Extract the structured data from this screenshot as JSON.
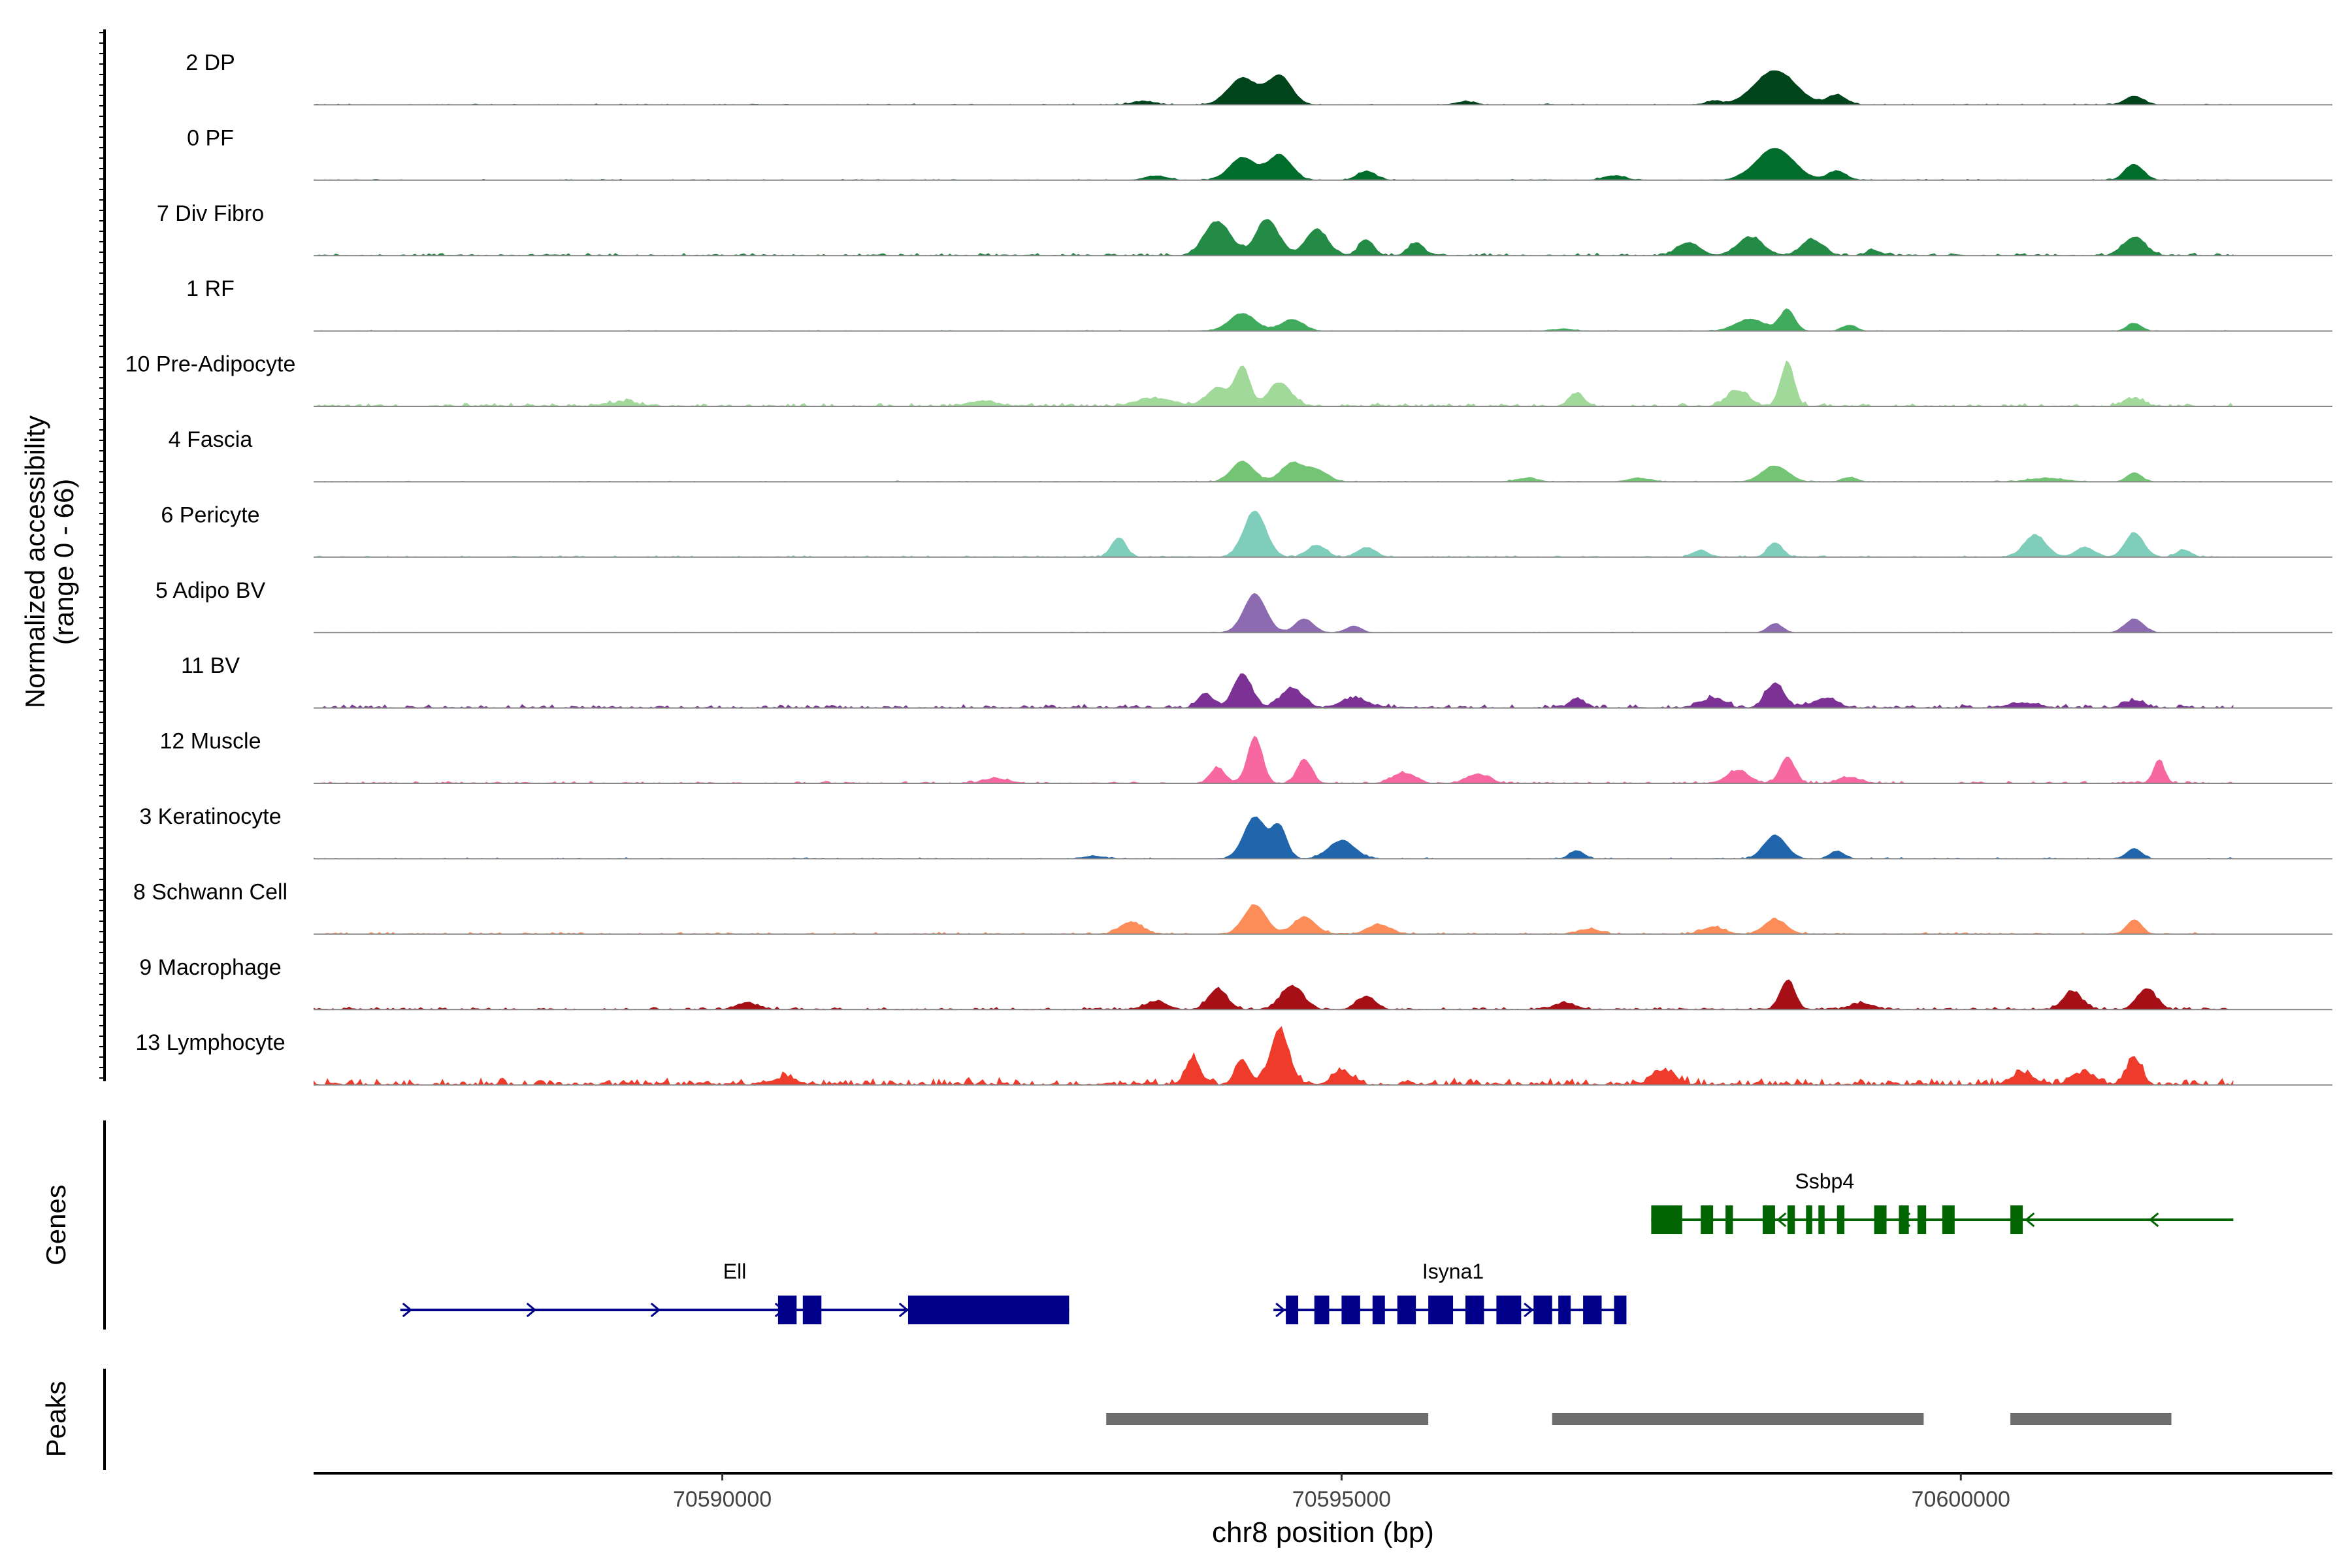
{
  "chart_data": {
    "type": "area",
    "ylabel_line1": "Normalized accessibility",
    "ylabel_line2": "(range 0 - 66)",
    "xlabel": "chr8 position (bp)",
    "xlim": [
      70586700,
      70603000
    ],
    "ylim": [
      0,
      66
    ],
    "x_ticks": [
      {
        "value": 70590000,
        "label": "70590000"
      },
      {
        "value": 70595000,
        "label": "70595000"
      },
      {
        "value": 70600000,
        "label": "70600000"
      }
    ],
    "tracks": [
      {
        "name": "2 DP",
        "color": "#00441b",
        "scale": 0.75,
        "noise": 0.03,
        "peaks": [
          [
            70594200,
            0.38,
            0.55
          ],
          [
            70594500,
            0.32,
            0.6
          ],
          [
            70598500,
            0.55,
            0.7
          ],
          [
            70599000,
            0.25,
            0.2
          ],
          [
            70598000,
            0.2,
            0.08
          ],
          [
            70601400,
            0.25,
            0.18
          ],
          [
            70596000,
            0.25,
            0.07
          ],
          [
            70593400,
            0.3,
            0.07
          ]
        ]
      },
      {
        "name": "0 PF",
        "color": "#006d2c",
        "scale": 0.7,
        "noise": 0.03,
        "peaks": [
          [
            70594200,
            0.35,
            0.5
          ],
          [
            70594500,
            0.32,
            0.55
          ],
          [
            70595200,
            0.25,
            0.2
          ],
          [
            70598500,
            0.5,
            0.7
          ],
          [
            70599000,
            0.25,
            0.2
          ],
          [
            70601400,
            0.25,
            0.35
          ],
          [
            70597200,
            0.3,
            0.1
          ],
          [
            70593500,
            0.3,
            0.1
          ]
        ]
      },
      {
        "name": "7 Div Fibro",
        "color": "#238b45",
        "scale": 0.8,
        "noise": 0.06,
        "peaks": [
          [
            70594000,
            0.35,
            0.65
          ],
          [
            70594400,
            0.3,
            0.7
          ],
          [
            70594800,
            0.3,
            0.5
          ],
          [
            70595200,
            0.2,
            0.3
          ],
          [
            70595600,
            0.2,
            0.25
          ],
          [
            70597800,
            0.3,
            0.25
          ],
          [
            70598300,
            0.35,
            0.35
          ],
          [
            70598800,
            0.3,
            0.3
          ],
          [
            70601400,
            0.3,
            0.35
          ],
          [
            70599300,
            0.2,
            0.1
          ]
        ]
      },
      {
        "name": "1 RF",
        "color": "#41ab5d",
        "scale": 0.6,
        "noise": 0.03,
        "peaks": [
          [
            70594200,
            0.35,
            0.45
          ],
          [
            70594600,
            0.3,
            0.3
          ],
          [
            70598300,
            0.4,
            0.3
          ],
          [
            70598600,
            0.2,
            0.55
          ],
          [
            70599100,
            0.2,
            0.15
          ],
          [
            70601400,
            0.2,
            0.2
          ],
          [
            70596800,
            0.3,
            0.05
          ]
        ]
      },
      {
        "name": "10 Pre-Adipocyte",
        "color": "#a1d99b",
        "scale": 0.8,
        "noise": 0.08,
        "peaks": [
          [
            70594200,
            0.2,
            0.75
          ],
          [
            70594500,
            0.3,
            0.45
          ],
          [
            70594000,
            0.3,
            0.35
          ],
          [
            70598600,
            0.18,
            0.85
          ],
          [
            70598200,
            0.3,
            0.3
          ],
          [
            70596900,
            0.2,
            0.25
          ],
          [
            70592100,
            0.4,
            0.1
          ],
          [
            70589200,
            0.4,
            0.08
          ],
          [
            70601400,
            0.25,
            0.15
          ],
          [
            70593500,
            0.5,
            0.15
          ]
        ]
      },
      {
        "name": "4 Fascia",
        "color": "#74c476",
        "scale": 0.7,
        "noise": 0.03,
        "peaks": [
          [
            70594200,
            0.3,
            0.45
          ],
          [
            70594600,
            0.3,
            0.4
          ],
          [
            70594800,
            0.3,
            0.25
          ],
          [
            70598500,
            0.35,
            0.35
          ],
          [
            70599100,
            0.2,
            0.1
          ],
          [
            70601400,
            0.2,
            0.2
          ],
          [
            70596500,
            0.3,
            0.08
          ],
          [
            70597400,
            0.3,
            0.08
          ],
          [
            70600700,
            0.5,
            0.08
          ]
        ]
      },
      {
        "name": "6 Pericyte",
        "color": "#7fcdbb",
        "scale": 0.75,
        "noise": 0.04,
        "peaks": [
          [
            70594300,
            0.3,
            0.95
          ],
          [
            70593200,
            0.2,
            0.4
          ],
          [
            70594800,
            0.25,
            0.25
          ],
          [
            70595200,
            0.25,
            0.2
          ],
          [
            70598500,
            0.2,
            0.3
          ],
          [
            70600600,
            0.3,
            0.45
          ],
          [
            70601000,
            0.25,
            0.2
          ],
          [
            70601400,
            0.25,
            0.5
          ],
          [
            70601800,
            0.2,
            0.15
          ],
          [
            70597900,
            0.2,
            0.15
          ]
        ]
      },
      {
        "name": "5 Adipo BV",
        "color": "#8c6bb1",
        "scale": 0.7,
        "noise": 0.02,
        "peaks": [
          [
            70594300,
            0.3,
            0.85
          ],
          [
            70594700,
            0.25,
            0.3
          ],
          [
            70595100,
            0.2,
            0.15
          ],
          [
            70598500,
            0.2,
            0.2
          ],
          [
            70601400,
            0.25,
            0.3
          ]
        ]
      },
      {
        "name": "11 BV",
        "color": "#7b3294",
        "scale": 0.75,
        "noise": 0.09,
        "peaks": [
          [
            70594200,
            0.25,
            0.7
          ],
          [
            70594600,
            0.3,
            0.4
          ],
          [
            70593900,
            0.2,
            0.3
          ],
          [
            70595100,
            0.35,
            0.2
          ],
          [
            70598500,
            0.25,
            0.5
          ],
          [
            70598000,
            0.3,
            0.2
          ],
          [
            70598900,
            0.3,
            0.2
          ],
          [
            70596900,
            0.2,
            0.2
          ],
          [
            70601400,
            0.25,
            0.15
          ],
          [
            70600500,
            0.4,
            0.1
          ]
        ]
      },
      {
        "name": "12 Muscle",
        "color": "#f768a1",
        "scale": 0.8,
        "noise": 0.05,
        "peaks": [
          [
            70594300,
            0.2,
            0.9
          ],
          [
            70594700,
            0.2,
            0.45
          ],
          [
            70594000,
            0.2,
            0.3
          ],
          [
            70595500,
            0.3,
            0.2
          ],
          [
            70596100,
            0.3,
            0.18
          ],
          [
            70598600,
            0.2,
            0.5
          ],
          [
            70598200,
            0.3,
            0.25
          ],
          [
            70601600,
            0.15,
            0.45
          ],
          [
            70592200,
            0.3,
            0.1
          ],
          [
            70599100,
            0.3,
            0.12
          ]
        ]
      },
      {
        "name": "3 Keratinocyte",
        "color": "#2166ac",
        "scale": 0.8,
        "noise": 0.03,
        "peaks": [
          [
            70594300,
            0.3,
            0.8
          ],
          [
            70594500,
            0.2,
            0.6
          ],
          [
            70595000,
            0.35,
            0.35
          ],
          [
            70598500,
            0.3,
            0.45
          ],
          [
            70599000,
            0.2,
            0.15
          ],
          [
            70601400,
            0.2,
            0.2
          ],
          [
            70596900,
            0.2,
            0.15
          ],
          [
            70593000,
            0.3,
            0.05
          ]
        ]
      },
      {
        "name": "8 Schwann Cell",
        "color": "#fc8d59",
        "scale": 0.75,
        "noise": 0.05,
        "peaks": [
          [
            70594300,
            0.3,
            0.6
          ],
          [
            70594700,
            0.3,
            0.35
          ],
          [
            70593300,
            0.3,
            0.25
          ],
          [
            70595300,
            0.3,
            0.2
          ],
          [
            70598500,
            0.3,
            0.3
          ],
          [
            70598000,
            0.3,
            0.15
          ],
          [
            70601400,
            0.2,
            0.3
          ],
          [
            70597000,
            0.3,
            0.1
          ]
        ]
      },
      {
        "name": "9 Macrophage",
        "color": "#a50f15",
        "scale": 0.8,
        "noise": 0.06,
        "peaks": [
          [
            70594000,
            0.25,
            0.4
          ],
          [
            70594600,
            0.3,
            0.45
          ],
          [
            70595200,
            0.25,
            0.25
          ],
          [
            70593500,
            0.3,
            0.15
          ],
          [
            70598600,
            0.2,
            0.55
          ],
          [
            70599200,
            0.3,
            0.12
          ],
          [
            70600900,
            0.25,
            0.35
          ],
          [
            70601500,
            0.25,
            0.4
          ],
          [
            70590200,
            0.3,
            0.12
          ],
          [
            70596800,
            0.3,
            0.12
          ]
        ]
      },
      {
        "name": "13 Lymphocyte",
        "color": "#ef3b2c",
        "scale": 0.9,
        "noise": 0.14,
        "peaks": [
          [
            70594500,
            0.25,
            0.95
          ],
          [
            70593800,
            0.2,
            0.45
          ],
          [
            70594200,
            0.2,
            0.4
          ],
          [
            70595000,
            0.25,
            0.25
          ],
          [
            70597600,
            0.3,
            0.25
          ],
          [
            70601400,
            0.2,
            0.45
          ],
          [
            70601000,
            0.3,
            0.2
          ],
          [
            70600500,
            0.3,
            0.2
          ],
          [
            70590500,
            0.3,
            0.12
          ]
        ]
      }
    ],
    "genes": [
      {
        "name": "Ell",
        "color": "#00008b",
        "strand": "+",
        "start": 70587400,
        "end": 70592800,
        "row": 1,
        "exons": [
          [
            70590450,
            70590600
          ],
          [
            70590650,
            70590800
          ],
          [
            70591500,
            70592800
          ]
        ],
        "label_x": 70590100
      },
      {
        "name": "Isyna1",
        "color": "#00008b",
        "strand": "+",
        "start": 70594450,
        "end": 70597300,
        "row": 1,
        "exons": [
          [
            70594550,
            70594650
          ],
          [
            70594780,
            70594900
          ],
          [
            70595000,
            70595150
          ],
          [
            70595250,
            70595350
          ],
          [
            70595450,
            70595600
          ],
          [
            70595700,
            70595900
          ],
          [
            70596000,
            70596150
          ],
          [
            70596250,
            70596450
          ],
          [
            70596550,
            70596700
          ],
          [
            70596750,
            70596850
          ],
          [
            70596950,
            70597100
          ],
          [
            70597200,
            70597300
          ]
        ],
        "label_x": 70595900
      },
      {
        "name": "Ssbp4",
        "color": "#006400",
        "strand": "-",
        "start": 70597500,
        "end": 70602200,
        "row": 0,
        "exons": [
          [
            70597500,
            70597750
          ],
          [
            70597900,
            70598000
          ],
          [
            70598100,
            70598160
          ],
          [
            70598400,
            70598500
          ],
          [
            70598600,
            70598660
          ],
          [
            70598750,
            70598800
          ],
          [
            70598850,
            70598900
          ],
          [
            70599000,
            70599060
          ],
          [
            70599300,
            70599400
          ],
          [
            70599500,
            70599580
          ],
          [
            70599650,
            70599720
          ],
          [
            70599850,
            70599950
          ],
          [
            70600400,
            70600500
          ]
        ],
        "label_x": 70598900
      }
    ],
    "peaks": [
      {
        "start": 70593100,
        "end": 70595700
      },
      {
        "start": 70596700,
        "end": 70599700
      },
      {
        "start": 70600400,
        "end": 70601700
      }
    ],
    "panel_labels": {
      "genes": "Genes",
      "peaks": "Peaks"
    }
  }
}
